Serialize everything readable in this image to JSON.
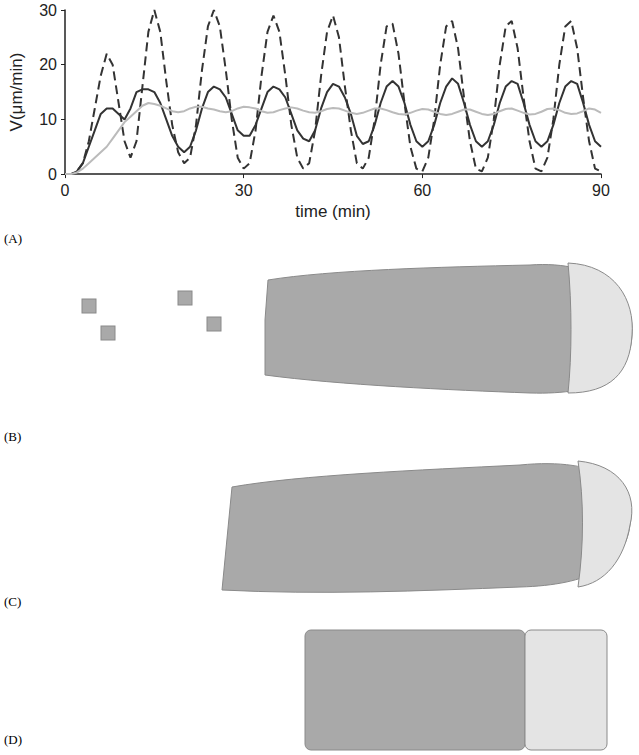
{
  "chart_data": {
    "type": "line",
    "panel": "(A)",
    "x_label": "time (min)",
    "y_label": "V(μm/min)",
    "x": [
      0,
      1,
      2,
      3,
      4,
      5,
      6,
      7,
      8,
      9,
      10,
      11,
      12,
      13,
      14,
      15,
      16,
      17,
      18,
      19,
      20,
      21,
      22,
      23,
      24,
      25,
      26,
      27,
      28,
      29,
      30,
      31,
      32,
      33,
      34,
      35,
      36,
      37,
      38,
      39,
      40,
      41,
      42,
      43,
      44,
      45,
      46,
      47,
      48,
      49,
      50,
      51,
      52,
      53,
      54,
      55,
      56,
      57,
      58,
      59,
      60,
      61,
      62,
      63,
      64,
      65,
      66,
      67,
      68,
      69,
      70,
      71,
      72,
      73,
      74,
      75,
      76,
      77,
      78,
      79,
      80,
      81,
      82,
      83,
      84,
      85,
      86,
      87,
      88,
      89,
      90
    ],
    "series": [
      {
        "color": "#333333",
        "line_style": "dashed",
        "values": [
          0,
          0,
          0.5,
          2,
          6,
          12,
          18,
          22,
          20,
          13,
          6,
          3,
          6,
          16,
          26,
          30,
          26,
          17,
          9,
          4,
          2,
          3,
          9,
          19,
          27,
          30,
          27,
          19,
          10,
          3,
          1,
          2,
          8,
          18,
          26,
          29,
          26,
          18,
          9,
          3,
          1,
          2,
          8,
          18,
          26,
          29,
          25,
          16,
          8,
          2,
          1,
          3,
          10,
          20,
          27,
          27.5,
          22,
          13,
          5,
          1,
          0.5,
          3,
          10,
          20,
          27,
          28,
          23,
          14,
          6,
          1,
          0.5,
          3,
          10,
          20,
          27,
          28,
          23,
          14,
          6,
          1,
          0.5,
          3,
          10,
          20,
          27,
          28,
          23,
          14,
          6,
          1,
          0.5
        ]
      },
      {
        "color": "#333333",
        "line_style": "solid",
        "values": [
          0,
          0,
          0.5,
          2,
          5,
          8,
          11,
          12,
          12,
          11,
          10,
          12,
          15,
          15.5,
          15.5,
          15,
          13,
          10,
          7,
          5,
          4,
          5,
          8,
          12,
          15,
          16,
          15.5,
          14,
          11,
          8,
          7,
          7,
          9,
          12,
          15,
          16,
          15.5,
          14,
          11,
          8,
          6.5,
          6,
          8,
          12,
          15,
          16.5,
          16,
          14,
          11,
          7,
          5.5,
          6,
          9,
          13,
          16,
          17,
          16,
          13,
          9,
          6,
          5,
          6,
          9,
          13,
          16,
          17.5,
          16.5,
          13,
          9,
          6,
          5,
          6,
          9,
          13,
          16,
          17,
          16.5,
          13,
          9,
          6,
          5,
          6,
          9,
          13,
          16,
          17,
          16.5,
          13,
          9,
          6,
          5
        ]
      },
      {
        "color": "#bbbbbb",
        "line_style": "solid",
        "values": [
          0,
          0,
          0.3,
          1,
          2,
          3,
          4,
          5,
          6.5,
          8,
          9.5,
          10.5,
          11.5,
          12.5,
          13,
          12.8,
          12.5,
          12,
          11.5,
          11.3,
          11.5,
          12,
          12.3,
          12.3,
          12,
          11.8,
          11.5,
          11.3,
          11.5,
          12,
          12.3,
          12.2,
          12,
          11.5,
          11.2,
          11.3,
          11.7,
          12,
          12.2,
          12,
          11.6,
          11.3,
          11.2,
          11.5,
          11.9,
          12.1,
          12,
          11.6,
          11.2,
          11,
          11.2,
          11.6,
          12,
          12,
          11.7,
          11.3,
          11,
          10.9,
          11.2,
          11.6,
          11.9,
          11.8,
          11.4,
          11,
          10.8,
          11,
          11.4,
          11.8,
          11.8,
          11.4,
          11,
          10.8,
          11,
          11.5,
          11.9,
          12,
          11.6,
          11.2,
          10.9,
          11,
          11.4,
          11.9,
          12,
          11.7,
          11.2,
          11,
          11.1,
          11.5,
          12,
          11.8,
          11.2
        ]
      }
    ],
    "xlim": [
      0,
      90
    ],
    "xticks": [
      0,
      30,
      60,
      90
    ],
    "ylim": [
      0,
      30
    ],
    "yticks": [
      0,
      10,
      20,
      30
    ],
    "grid": false
  },
  "panels": [
    {
      "label": "(B)"
    },
    {
      "label": "(C)"
    },
    {
      "label": "(D)"
    }
  ]
}
